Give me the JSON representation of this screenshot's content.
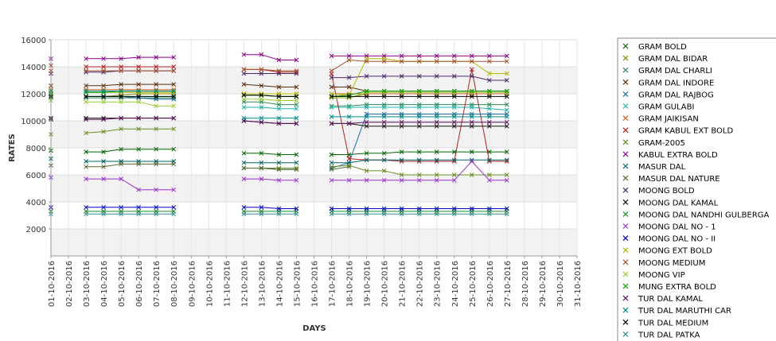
{
  "chart_data": {
    "type": "line",
    "title": "",
    "xlabel": "DAYS",
    "ylabel": "RATES",
    "ylim": [
      0,
      16000
    ],
    "yticks": [
      2000,
      4000,
      6000,
      8000,
      10000,
      12000,
      14000,
      16000
    ],
    "grid": "alternating horizontal bands",
    "legend_position": "right",
    "categories": [
      "01-10-2016",
      "02-10-2016",
      "03-10-2016",
      "04-10-2016",
      "05-10-2016",
      "06-10-2016",
      "07-10-2016",
      "08-10-2016",
      "09-10-2016",
      "10-10-2016",
      "11-10-2016",
      "12-10-2016",
      "13-10-2016",
      "14-10-2016",
      "15-10-2016",
      "16-10-2016",
      "17-10-2016",
      "18-10-2016",
      "19-10-2016",
      "20-10-2016",
      "21-10-2016",
      "22-10-2016",
      "23-10-2016",
      "24-10-2016",
      "25-10-2016",
      "26-10-2016",
      "27-10-2016",
      "28-10-2016",
      "29-10-2016",
      "30-10-2016",
      "31-10-2016"
    ],
    "series": [
      {
        "name": "GRAM BOLD",
        "color": "#006400",
        "values": [
          7800,
          null,
          7700,
          7700,
          7900,
          7900,
          7900,
          7900,
          null,
          null,
          null,
          7600,
          7600,
          7500,
          7500,
          null,
          7500,
          7500,
          7600,
          7600,
          7700,
          7700,
          7700,
          7700,
          7700,
          7700,
          7700,
          null,
          null,
          null,
          null
        ]
      },
      {
        "name": "GRAM DAL BIDAR",
        "color": "#8b8b00",
        "values": [
          11900,
          null,
          11800,
          11800,
          11900,
          12000,
          12000,
          12000,
          null,
          null,
          null,
          11900,
          11900,
          11800,
          11800,
          null,
          11700,
          11700,
          12000,
          12000,
          12000,
          12000,
          12000,
          12000,
          12000,
          12000,
          12000,
          null,
          null,
          null,
          null
        ]
      },
      {
        "name": "GRAM DAL CHARLI",
        "color": "#2e8b57",
        "values": [
          11700,
          null,
          11700,
          11700,
          11700,
          11700,
          11700,
          11700,
          null,
          null,
          null,
          11400,
          11400,
          11200,
          11200,
          null,
          11100,
          11100,
          11200,
          11200,
          11200,
          11200,
          11200,
          11200,
          11200,
          11200,
          11200,
          null,
          null,
          null,
          null
        ]
      },
      {
        "name": "GRAM DAL INDORE",
        "color": "#5a2d0c",
        "values": [
          12600,
          null,
          12600,
          12600,
          12700,
          12700,
          12700,
          12700,
          null,
          null,
          null,
          12700,
          12600,
          12500,
          12500,
          null,
          12500,
          12500,
          12200,
          12200,
          12200,
          12200,
          12200,
          12200,
          12200,
          12200,
          12200,
          null,
          null,
          null,
          null
        ]
      },
      {
        "name": "GRAM DAL RAJBOG",
        "color": "#1e6ea0",
        "values": [
          12000,
          null,
          11800,
          11800,
          11800,
          11700,
          11600,
          11600,
          null,
          null,
          null,
          6500,
          6500,
          6400,
          6400,
          null,
          6500,
          6900,
          10500,
          10500,
          10500,
          10500,
          10500,
          10500,
          10500,
          10500,
          10500,
          null,
          null,
          null,
          null
        ]
      },
      {
        "name": "GRAM GULABI",
        "color": "#20b2aa",
        "values": [
          11800,
          null,
          11800,
          11800,
          11800,
          11800,
          11800,
          11800,
          null,
          null,
          null,
          11000,
          11000,
          10900,
          10900,
          null,
          11000,
          11000,
          11000,
          11000,
          11000,
          11000,
          11000,
          11000,
          11000,
          10900,
          10800,
          null,
          null,
          null,
          null
        ]
      },
      {
        "name": "GRAM JAIKISAN",
        "color": "#cd5c1a",
        "values": [
          12300,
          null,
          12300,
          12300,
          12300,
          12300,
          12300,
          12300,
          null,
          null,
          null,
          12000,
          12000,
          12000,
          12000,
          null,
          12000,
          12000,
          12000,
          12000,
          12000,
          12000,
          12000,
          12000,
          12000,
          12000,
          12000,
          null,
          null,
          null,
          null
        ]
      },
      {
        "name": "GRAM KABUL EXT BOLD",
        "color": "#b22222",
        "values": [
          14100,
          null,
          14000,
          14000,
          14000,
          14000,
          14000,
          14000,
          null,
          null,
          null,
          13800,
          13800,
          13600,
          13600,
          null,
          13500,
          7200,
          7100,
          7100,
          7000,
          7000,
          7000,
          7000,
          13800,
          7000,
          7000,
          null,
          null,
          null,
          null
        ]
      },
      {
        "name": "GRAM-2005",
        "color": "#6b8e23",
        "values": [
          9000,
          null,
          9100,
          9200,
          9400,
          9400,
          9400,
          9400,
          null,
          null,
          null,
          6500,
          6500,
          6500,
          6500,
          null,
          6600,
          6700,
          6300,
          6300,
          6000,
          6000,
          6000,
          6000,
          6000,
          6000,
          6000,
          null,
          null,
          null,
          null
        ]
      },
      {
        "name": "KABUL EXTRA BOLD",
        "color": "#8b008b",
        "values": [
          14600,
          null,
          14600,
          14600,
          14600,
          14700,
          14700,
          14700,
          null,
          null,
          null,
          14900,
          14900,
          14500,
          14500,
          null,
          14800,
          14800,
          14800,
          14800,
          14800,
          14800,
          14800,
          14800,
          14800,
          14800,
          14800,
          null,
          null,
          null,
          null
        ]
      },
      {
        "name": "MASUR DAL",
        "color": "#006060",
        "values": [
          7200,
          null,
          7000,
          7000,
          7000,
          7000,
          7000,
          7000,
          null,
          null,
          null,
          6900,
          6900,
          6900,
          6900,
          null,
          6900,
          6900,
          7100,
          7100,
          7100,
          7100,
          7100,
          7100,
          7100,
          7100,
          7100,
          null,
          null,
          null,
          null
        ]
      },
      {
        "name": "MASUR DAL NATURE",
        "color": "#556b2f",
        "values": [
          6700,
          null,
          6600,
          6600,
          6800,
          6800,
          6800,
          6800,
          null,
          null,
          null,
          6500,
          6500,
          6400,
          6400,
          null,
          6400,
          6600,
          null,
          null,
          null,
          null,
          null,
          null,
          null,
          null,
          null,
          null,
          null,
          null,
          null
        ]
      },
      {
        "name": "MOONG BOLD",
        "color": "#4b2a6b",
        "values": [
          13500,
          null,
          13600,
          13600,
          13700,
          13700,
          13700,
          13700,
          null,
          null,
          null,
          13500,
          13500,
          13500,
          13500,
          null,
          13200,
          13200,
          13300,
          13300,
          13300,
          13300,
          13300,
          13300,
          13300,
          13000,
          13000,
          null,
          null,
          null,
          null
        ]
      },
      {
        "name": "MOONG DAL KAMAL",
        "color": "#111111",
        "values": [
          10200,
          null,
          10200,
          10200,
          10200,
          10200,
          10200,
          10200,
          null,
          null,
          null,
          10000,
          9900,
          9800,
          9800,
          null,
          9800,
          9800,
          9600,
          9600,
          9600,
          9600,
          9600,
          9600,
          9600,
          9600,
          9600,
          null,
          null,
          null,
          null
        ]
      },
      {
        "name": "MOONG DAL NANDHI GULBERGA",
        "color": "#228b22",
        "values": [
          3300,
          null,
          3300,
          3300,
          3300,
          3300,
          3300,
          3300,
          null,
          null,
          null,
          3300,
          3300,
          3300,
          3300,
          null,
          3300,
          3300,
          3300,
          3300,
          3300,
          3300,
          3300,
          3300,
          3300,
          3300,
          3300,
          null,
          null,
          null,
          null
        ]
      },
      {
        "name": "MOONG DAL NO - 1",
        "color": "#9932cc",
        "values": [
          5800,
          null,
          5700,
          5700,
          5700,
          4900,
          4900,
          4900,
          null,
          null,
          null,
          5700,
          5700,
          5600,
          5600,
          null,
          5600,
          5600,
          5600,
          5600,
          5600,
          5600,
          5600,
          5600,
          7000,
          5600,
          5600,
          null,
          null,
          null,
          null
        ]
      },
      {
        "name": "MOONG DAL NO - II",
        "color": "#0000cd",
        "values": [
          3600,
          null,
          3600,
          3600,
          3600,
          3600,
          3600,
          3600,
          null,
          null,
          null,
          3600,
          3600,
          3500,
          3500,
          null,
          3500,
          3500,
          3500,
          3500,
          3500,
          3500,
          3500,
          3500,
          3500,
          3500,
          3500,
          null,
          null,
          null,
          null
        ]
      },
      {
        "name": "MOONG EXT BOLD",
        "color": "#b8b800",
        "values": [
          12100,
          null,
          12100,
          12100,
          12100,
          12100,
          12100,
          12100,
          null,
          null,
          null,
          12000,
          12000,
          12000,
          12000,
          null,
          12000,
          11900,
          14600,
          14600,
          14400,
          14400,
          14400,
          14400,
          14400,
          13500,
          13500,
          null,
          null,
          null,
          null
        ]
      },
      {
        "name": "MOONG MEDIUM",
        "color": "#a0522d",
        "values": [
          13700,
          null,
          13700,
          13700,
          13700,
          13700,
          13700,
          13700,
          null,
          null,
          null,
          13800,
          13800,
          13700,
          13700,
          null,
          13700,
          14500,
          14400,
          14400,
          14400,
          14400,
          14400,
          14400,
          14400,
          14400,
          14400,
          null,
          null,
          null,
          null
        ]
      },
      {
        "name": "MOONG VIP",
        "color": "#9acd32",
        "values": [
          11500,
          null,
          11400,
          11400,
          11400,
          11400,
          11100,
          11100,
          null,
          null,
          null,
          11600,
          11600,
          11500,
          11500,
          null,
          11700,
          11700,
          12100,
          12100,
          12100,
          12100,
          12100,
          12100,
          12100,
          12100,
          12100,
          null,
          null,
          null,
          null
        ]
      },
      {
        "name": "MUNG EXTRA BOLD",
        "color": "#00a000",
        "values": [
          12000,
          null,
          12100,
          12100,
          12200,
          12200,
          12200,
          12200,
          null,
          null,
          null,
          11900,
          11900,
          11800,
          11800,
          null,
          11800,
          11900,
          12200,
          12200,
          12200,
          12200,
          12200,
          12200,
          12200,
          12200,
          12200,
          null,
          null,
          null,
          null
        ]
      },
      {
        "name": "TUR DAL KAMAL",
        "color": "#5a0f5a",
        "values": [
          10100,
          null,
          10100,
          10100,
          10200,
          10200,
          10200,
          10200,
          null,
          null,
          null,
          10000,
          9900,
          9800,
          9800,
          null,
          9800,
          9800,
          9900,
          9900,
          9900,
          9900,
          9900,
          9900,
          9900,
          9900,
          9900,
          null,
          null,
          null,
          null
        ]
      },
      {
        "name": "TUR DAL MARUTHI CAR",
        "color": "#008b8b",
        "values": [
          12200,
          null,
          12200,
          12200,
          12200,
          12200,
          12200,
          12200,
          null,
          null,
          null,
          10200,
          10200,
          10200,
          10200,
          null,
          10300,
          10300,
          10300,
          10300,
          10300,
          10300,
          10300,
          10300,
          10300,
          10300,
          10300,
          null,
          null,
          null,
          null
        ]
      },
      {
        "name": "TUR DAL MEDIUM",
        "color": "#000000",
        "values": [
          11800,
          null,
          11800,
          11800,
          11800,
          11800,
          11800,
          11800,
          null,
          null,
          null,
          11900,
          11900,
          11800,
          11800,
          null,
          11800,
          11800,
          11800,
          11800,
          11800,
          11800,
          11800,
          11800,
          11800,
          11800,
          11800,
          null,
          null,
          null,
          null
        ]
      },
      {
        "name": "TUR DAL PATKA",
        "color": "#2f8f8f",
        "values": [
          3100,
          null,
          3100,
          3100,
          3100,
          3100,
          3100,
          3100,
          null,
          null,
          null,
          3100,
          3100,
          3100,
          3100,
          null,
          3100,
          3100,
          3100,
          3100,
          3100,
          3100,
          3100,
          3100,
          3100,
          3100,
          3100,
          null,
          null,
          null,
          null
        ]
      }
    ]
  }
}
